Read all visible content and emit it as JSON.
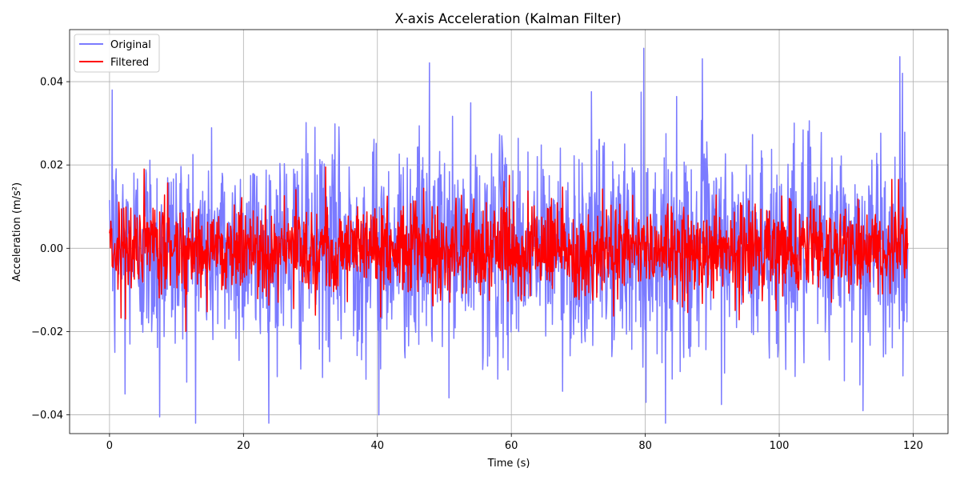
{
  "chart_data": {
    "type": "line",
    "title": "X-axis Acceleration (Kalman Filter)",
    "xlabel": "Time (s)",
    "ylabel": "Acceleration (m/s²)",
    "xlim": [
      -5.96,
      125.2
    ],
    "ylim": [
      -0.0445,
      0.0525
    ],
    "x_ticks": [
      0,
      20,
      40,
      60,
      80,
      100,
      120
    ],
    "x_tick_labels": [
      "0",
      "20",
      "40",
      "60",
      "80",
      "100",
      "120"
    ],
    "y_ticks": [
      -0.04,
      -0.02,
      0.0,
      0.02,
      0.04
    ],
    "y_tick_labels": [
      "−0.04",
      "−0.02",
      "0.00",
      "0.02",
      "0.04"
    ],
    "grid": true,
    "legend_position": "upper-left",
    "x_range_data": [
      0,
      119.2
    ],
    "series": [
      {
        "name": "Original",
        "color": "#7b7bff",
        "noise_std": 0.0125,
        "markers": [
          {
            "t": 0.4,
            "v": 0.038
          },
          {
            "t": 0.8,
            "v": -0.025
          },
          {
            "t": 2.3,
            "v": -0.035
          },
          {
            "t": 7.5,
            "v": -0.0405
          },
          {
            "t": 40.2,
            "v": -0.04
          },
          {
            "t": 47.8,
            "v": 0.0445
          },
          {
            "t": 79.8,
            "v": 0.048
          },
          {
            "t": 80.1,
            "v": -0.037
          },
          {
            "t": 88.5,
            "v": 0.0455
          },
          {
            "t": 112.5,
            "v": -0.039
          },
          {
            "t": 118.0,
            "v": 0.046
          }
        ]
      },
      {
        "name": "Filtered",
        "color": "#ff0000",
        "noise_std": 0.0055,
        "markers": [
          {
            "t": 32.3,
            "v": 0.0195
          },
          {
            "t": 59.7,
            "v": 0.0175
          },
          {
            "t": 27.5,
            "v": -0.0145
          },
          {
            "t": 40.5,
            "v": -0.0165
          },
          {
            "t": 99.5,
            "v": -0.015
          },
          {
            "t": 117.8,
            "v": 0.0165
          }
        ]
      }
    ]
  }
}
